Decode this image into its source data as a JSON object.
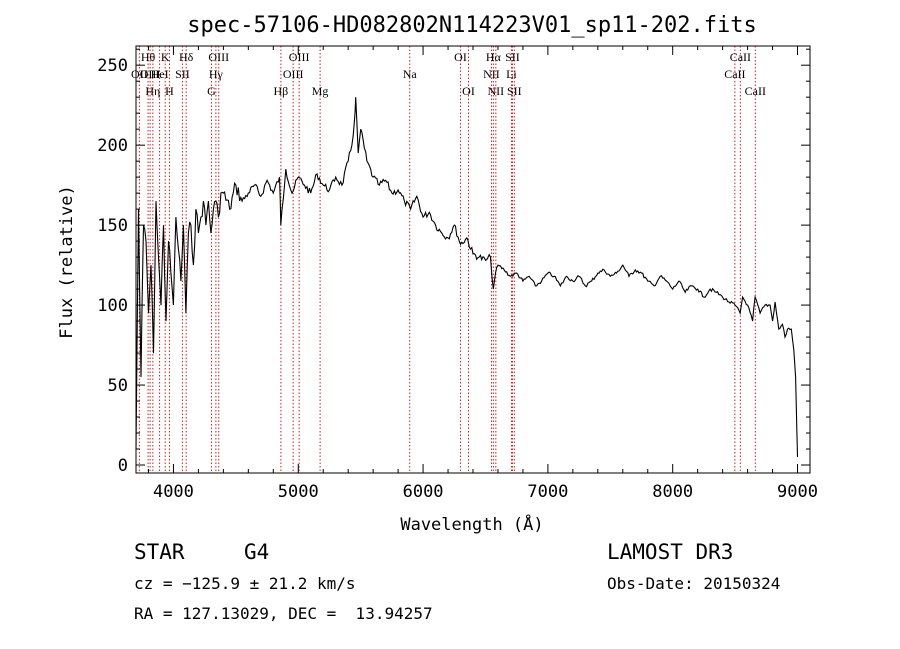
{
  "chart_data": {
    "type": "line",
    "title": "spec-57106-HD082802N114223V01_sp11-202.fits",
    "xlabel": "Wavelength (Å)",
    "ylabel": "Flux (relative)",
    "xlim": [
      3700,
      9100
    ],
    "ylim": [
      -5,
      262
    ],
    "xticks": [
      4000,
      5000,
      6000,
      7000,
      8000,
      9000
    ],
    "xtick_labels": [
      "4000",
      "5000",
      "6000",
      "7000",
      "8000",
      "9000"
    ],
    "yticks": [
      0,
      50,
      100,
      150,
      200,
      250
    ],
    "ytick_labels": [
      "0",
      "50",
      "100",
      "150",
      "200",
      "250"
    ],
    "grid": false,
    "series": [
      {
        "name": "flux",
        "x": [
          3700,
          3720,
          3740,
          3760,
          3780,
          3800,
          3820,
          3840,
          3860,
          3880,
          3900,
          3920,
          3940,
          3960,
          3980,
          4000,
          4020,
          4040,
          4060,
          4080,
          4100,
          4120,
          4140,
          4160,
          4180,
          4200,
          4220,
          4240,
          4260,
          4280,
          4300,
          4320,
          4340,
          4360,
          4380,
          4400,
          4450,
          4500,
          4550,
          4600,
          4650,
          4700,
          4750,
          4800,
          4850,
          4860,
          4900,
          4950,
          5000,
          5050,
          5100,
          5150,
          5200,
          5250,
          5300,
          5350,
          5400,
          5430,
          5450,
          5460,
          5480,
          5500,
          5550,
          5600,
          5650,
          5700,
          5750,
          5800,
          5850,
          5900,
          5950,
          6000,
          6050,
          6100,
          6150,
          6200,
          6250,
          6300,
          6350,
          6400,
          6450,
          6500,
          6540,
          6563,
          6580,
          6600,
          6650,
          6700,
          6750,
          6800,
          6850,
          6900,
          6950,
          7000,
          7050,
          7100,
          7150,
          7200,
          7250,
          7300,
          7350,
          7400,
          7450,
          7500,
          7550,
          7600,
          7650,
          7700,
          7750,
          7800,
          7850,
          7900,
          7950,
          8000,
          8050,
          8100,
          8150,
          8200,
          8250,
          8300,
          8350,
          8400,
          8450,
          8500,
          8540,
          8560,
          8600,
          8640,
          8660,
          8700,
          8740,
          8780,
          8800,
          8820,
          8850,
          8880,
          8900,
          8920,
          8950,
          8970,
          8985,
          8995,
          9000
        ],
        "y": [
          10,
          160,
          55,
          150,
          140,
          95,
          125,
          70,
          165,
          130,
          100,
          150,
          90,
          140,
          120,
          100,
          155,
          135,
          115,
          150,
          95,
          145,
          150,
          125,
          160,
          145,
          155,
          165,
          150,
          165,
          145,
          160,
          165,
          155,
          170,
          170,
          160,
          175,
          165,
          170,
          175,
          168,
          178,
          170,
          180,
          150,
          185,
          170,
          180,
          175,
          170,
          182,
          175,
          172,
          180,
          175,
          190,
          200,
          215,
          230,
          195,
          210,
          190,
          180,
          175,
          178,
          170,
          172,
          165,
          160,
          168,
          155,
          158,
          150,
          145,
          142,
          150,
          138,
          142,
          132,
          130,
          128,
          130,
          110,
          120,
          125,
          122,
          118,
          120,
          115,
          118,
          112,
          115,
          120,
          118,
          112,
          118,
          115,
          118,
          112,
          115,
          120,
          122,
          118,
          120,
          125,
          118,
          122,
          120,
          115,
          112,
          118,
          115,
          110,
          115,
          108,
          112,
          110,
          105,
          110,
          108,
          105,
          102,
          100,
          95,
          105,
          100,
          90,
          105,
          95,
          100,
          100,
          90,
          102,
          85,
          88,
          80,
          85,
          85,
          72,
          55,
          20,
          5
        ]
      }
    ],
    "line_markers": [
      {
        "label": "OII",
        "x": 3727,
        "row": 2
      },
      {
        "label": "Hθ",
        "x": 3797,
        "row": 1
      },
      {
        "label": "OIII",
        "x": 3813,
        "row": 2
      },
      {
        "label": "Hη",
        "x": 3835,
        "row": 3
      },
      {
        "label": "HeI",
        "x": 3889,
        "row": 2
      },
      {
        "label": "K",
        "x": 3934,
        "row": 1
      },
      {
        "label": "H",
        "x": 3968,
        "row": 3
      },
      {
        "label": "SII",
        "x": 4072,
        "row": 2
      },
      {
        "label": "Hδ",
        "x": 4102,
        "row": 1
      },
      {
        "label": "G",
        "x": 4305,
        "row": 3
      },
      {
        "label": "Hγ",
        "x": 4340,
        "row": 2
      },
      {
        "label": "OIII",
        "x": 4363,
        "row": 1
      },
      {
        "label": "Hβ",
        "x": 4861,
        "row": 3
      },
      {
        "label": "OIII",
        "x": 4959,
        "row": 2
      },
      {
        "label": "OIII",
        "x": 5007,
        "row": 1
      },
      {
        "label": "Mg",
        "x": 5175,
        "row": 3
      },
      {
        "label": "Na",
        "x": 5893,
        "row": 2
      },
      {
        "label": "OI",
        "x": 6300,
        "row": 1
      },
      {
        "label": "OI",
        "x": 6364,
        "row": 3
      },
      {
        "label": "NII",
        "x": 6548,
        "row": 2
      },
      {
        "label": "Hα",
        "x": 6563,
        "row": 1
      },
      {
        "label": "NII",
        "x": 6583,
        "row": 3
      },
      {
        "label": "Li",
        "x": 6708,
        "row": 2
      },
      {
        "label": "SII",
        "x": 6716,
        "row": 1
      },
      {
        "label": "SII",
        "x": 6731,
        "row": 3
      },
      {
        "label": "CaII",
        "x": 8498,
        "row": 2
      },
      {
        "label": "CaII",
        "x": 8542,
        "row": 1
      },
      {
        "label": "CaII",
        "x": 8662,
        "row": 3
      }
    ]
  },
  "info": {
    "object_class": "STAR",
    "subclass": "G4",
    "survey": "LAMOST DR3",
    "velocity": "cz = −125.9 ± 21.2 km/s",
    "obs_date": "Obs-Date: 20150324",
    "coords": "RA = 127.13029, DEC =  13.94257"
  },
  "colors": {
    "marker_line": "#d02020",
    "spectrum": "#000000"
  }
}
